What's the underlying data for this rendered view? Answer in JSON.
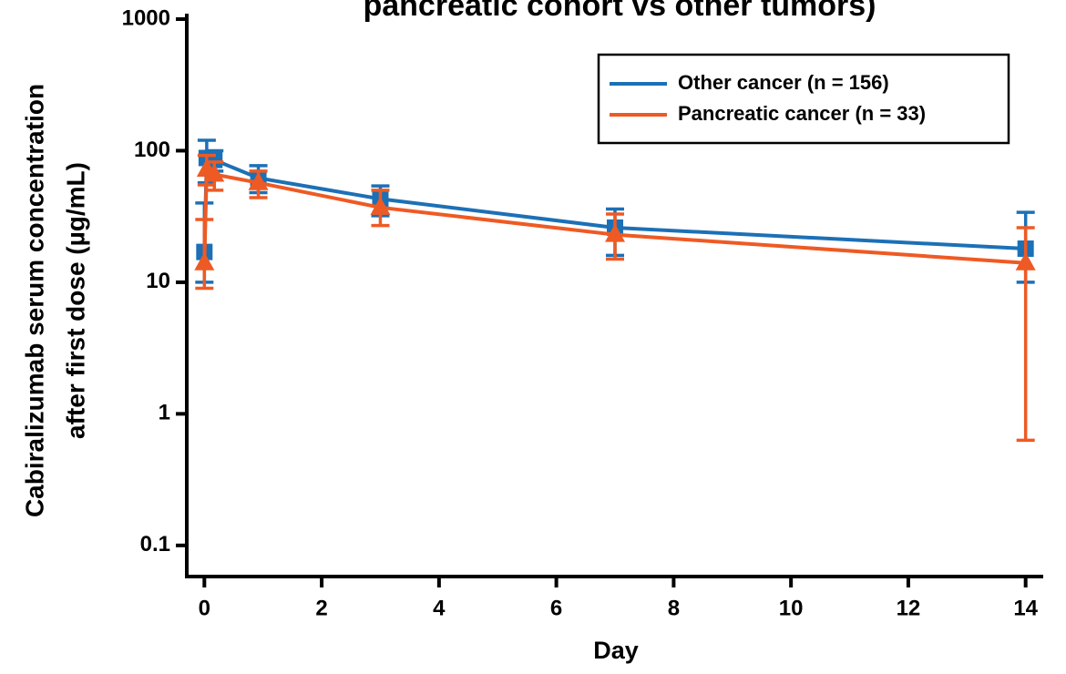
{
  "chart_data": {
    "type": "line",
    "title": "pancreatic cohort vs other tumors)",
    "x_label": "Day",
    "y_label": [
      "Cabiralizumab serum concentration",
      "after first dose (µg/mL)"
    ],
    "x": [
      0,
      0.04,
      0.17,
      0.92,
      3,
      7,
      14
    ],
    "series": [
      {
        "name": "Other cancer (n = 156)",
        "color": "#1c70b6",
        "marker": "square",
        "values": [
          17,
          88,
          85,
          62,
          43,
          26,
          18
        ],
        "lower": [
          10,
          57,
          70,
          48,
          32,
          16,
          10
        ],
        "upper": [
          40,
          120,
          100,
          77,
          54,
          36,
          34
        ]
      },
      {
        "name": "Pancreatic cancer (n = 33)",
        "color": "#ee5a24",
        "marker": "triangle",
        "values": [
          14,
          72,
          66,
          57,
          37,
          23,
          14
        ],
        "lower": [
          9,
          55,
          50,
          44,
          27,
          15,
          0.63
        ],
        "upper": [
          30,
          92,
          82,
          70,
          50,
          33,
          26
        ]
      }
    ],
    "xlim": [
      -0.3,
      14.3
    ],
    "xticks": [
      0,
      2,
      4,
      6,
      8,
      10,
      12,
      14
    ],
    "ylim": [
      0.058,
      1100
    ],
    "yticks": [
      0.1,
      1,
      10,
      100,
      1000
    ],
    "log_y": true,
    "legend": "upper right"
  }
}
